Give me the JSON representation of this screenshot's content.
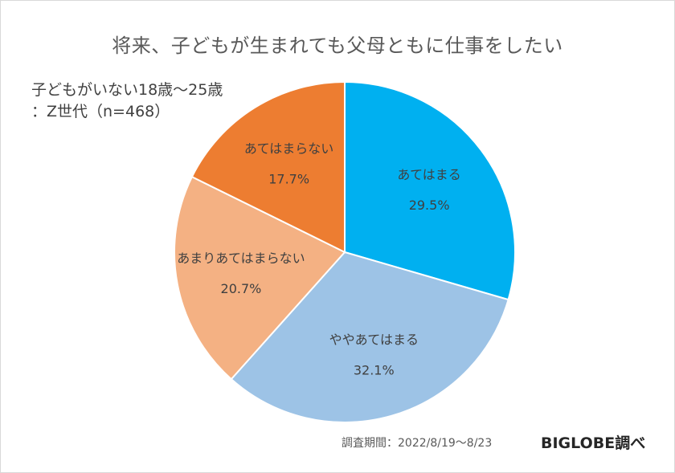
{
  "title": "将来、子どもが生まれても父母ともに仕事をしたい",
  "subtitle": {
    "line1": "子どもがいない18歳～25歳",
    "line2": "：Z世代（n=468）"
  },
  "footer": {
    "period": "調査期間：2022/8/19～8/23",
    "source": "BIGLOBE調べ"
  },
  "chart_data": {
    "type": "pie",
    "categories": [
      "あてはまる",
      "ややあてはまる",
      "あまりあてはまらない",
      "あてはまらない"
    ],
    "values": [
      29.5,
      32.1,
      20.7,
      17.7
    ],
    "value_labels": [
      "29.5%",
      "32.1%",
      "20.7%",
      "17.7%"
    ],
    "colors": [
      "#00b0f0",
      "#9dc3e6",
      "#f4b183",
      "#ed7d31"
    ],
    "start": "12 o'clock, clockwise",
    "legend": "none (labels on slices)"
  }
}
